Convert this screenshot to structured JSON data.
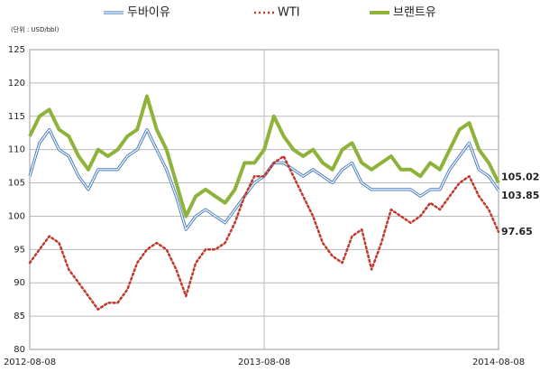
{
  "chart_data": {
    "type": "line",
    "subtitle": "(단위 : USD/bbl)",
    "categories": [
      "2012-08-08",
      null,
      null,
      null,
      null,
      null,
      null,
      null,
      null,
      null,
      null,
      null,
      null,
      null,
      null,
      null,
      null,
      null,
      null,
      null,
      null,
      null,
      null,
      null,
      "2013-08-08",
      null,
      null,
      null,
      null,
      null,
      null,
      null,
      null,
      null,
      null,
      null,
      null,
      null,
      null,
      null,
      null,
      null,
      null,
      null,
      null,
      null,
      null,
      null,
      "2014-08-08"
    ],
    "series": [
      {
        "name": "브랜트유",
        "color": "#8db33a",
        "values": [
          112,
          115,
          116,
          113,
          112,
          109,
          107,
          110,
          109,
          110,
          112,
          113,
          118,
          113,
          110,
          105,
          100,
          103,
          104,
          103,
          102,
          104,
          108,
          108,
          110,
          115,
          112,
          110,
          109,
          110,
          108,
          107,
          110,
          111,
          108,
          107,
          108,
          109,
          107,
          107,
          106,
          108,
          107,
          110,
          113,
          114,
          110,
          108,
          105.02
        ]
      },
      {
        "name": "두바이유",
        "color": "#4a7fc1",
        "values": [
          106,
          111,
          113,
          110,
          109,
          106,
          104,
          107,
          107,
          107,
          109,
          110,
          113,
          110,
          107,
          103,
          98,
          100,
          101,
          100,
          99,
          101,
          103,
          105,
          106,
          108,
          108,
          107,
          106,
          107,
          106,
          105,
          107,
          108,
          105,
          104,
          104,
          104,
          104,
          104,
          103,
          104,
          104,
          107,
          109,
          111,
          107,
          106,
          103.85
        ]
      },
      {
        "name": "WTI",
        "color": "#c0392b",
        "values": [
          93,
          95,
          97,
          96,
          92,
          90,
          88,
          86,
          87,
          87,
          89,
          93,
          95,
          96,
          95,
          92,
          88,
          93,
          95,
          95,
          96,
          99,
          103,
          106,
          106,
          108,
          109,
          106,
          103,
          100,
          96,
          94,
          93,
          97,
          98,
          92,
          96,
          101,
          100,
          99,
          100,
          102,
          101,
          103,
          105,
          106,
          103,
          101,
          97.65
        ]
      }
    ],
    "ylim": [
      80,
      125
    ],
    "yticks": [
      80,
      85,
      90,
      95,
      100,
      105,
      110,
      115,
      120,
      125
    ],
    "grid": true
  }
}
